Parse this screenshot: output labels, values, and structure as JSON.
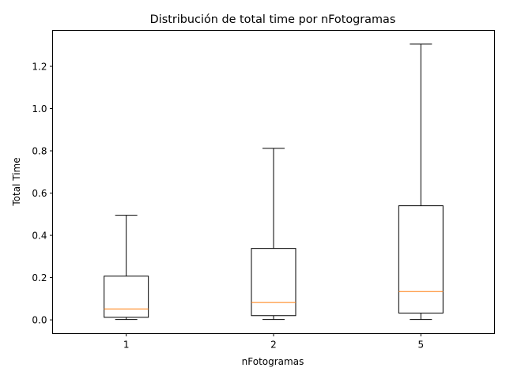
{
  "chart_data": {
    "type": "box",
    "title": "Distribución de total time por nFotogramas",
    "xlabel": "nFotogramas",
    "ylabel": "Total Time",
    "ylim": [
      -0.065,
      1.37
    ],
    "yticks": [
      0.0,
      0.2,
      0.4,
      0.6,
      0.8,
      1.0,
      1.2
    ],
    "ytick_labels": [
      "0.0",
      "0.2",
      "0.4",
      "0.6",
      "0.8",
      "1.0",
      "1.2"
    ],
    "categories": [
      "1",
      "2",
      "5"
    ],
    "boxes": [
      {
        "category": "1",
        "whisker_low": 0.002,
        "q1": 0.012,
        "median": 0.052,
        "q3": 0.207,
        "whisker_high": 0.495
      },
      {
        "category": "2",
        "whisker_low": 0.002,
        "q1": 0.02,
        "median": 0.082,
        "q3": 0.338,
        "whisker_high": 0.812
      },
      {
        "category": "5",
        "whisker_low": 0.002,
        "q1": 0.032,
        "median": 0.134,
        "q3": 0.54,
        "whisker_high": 1.305
      }
    ],
    "box_color": "#000000",
    "median_color": "#ff7f0e",
    "grid": false,
    "legend": "none"
  }
}
